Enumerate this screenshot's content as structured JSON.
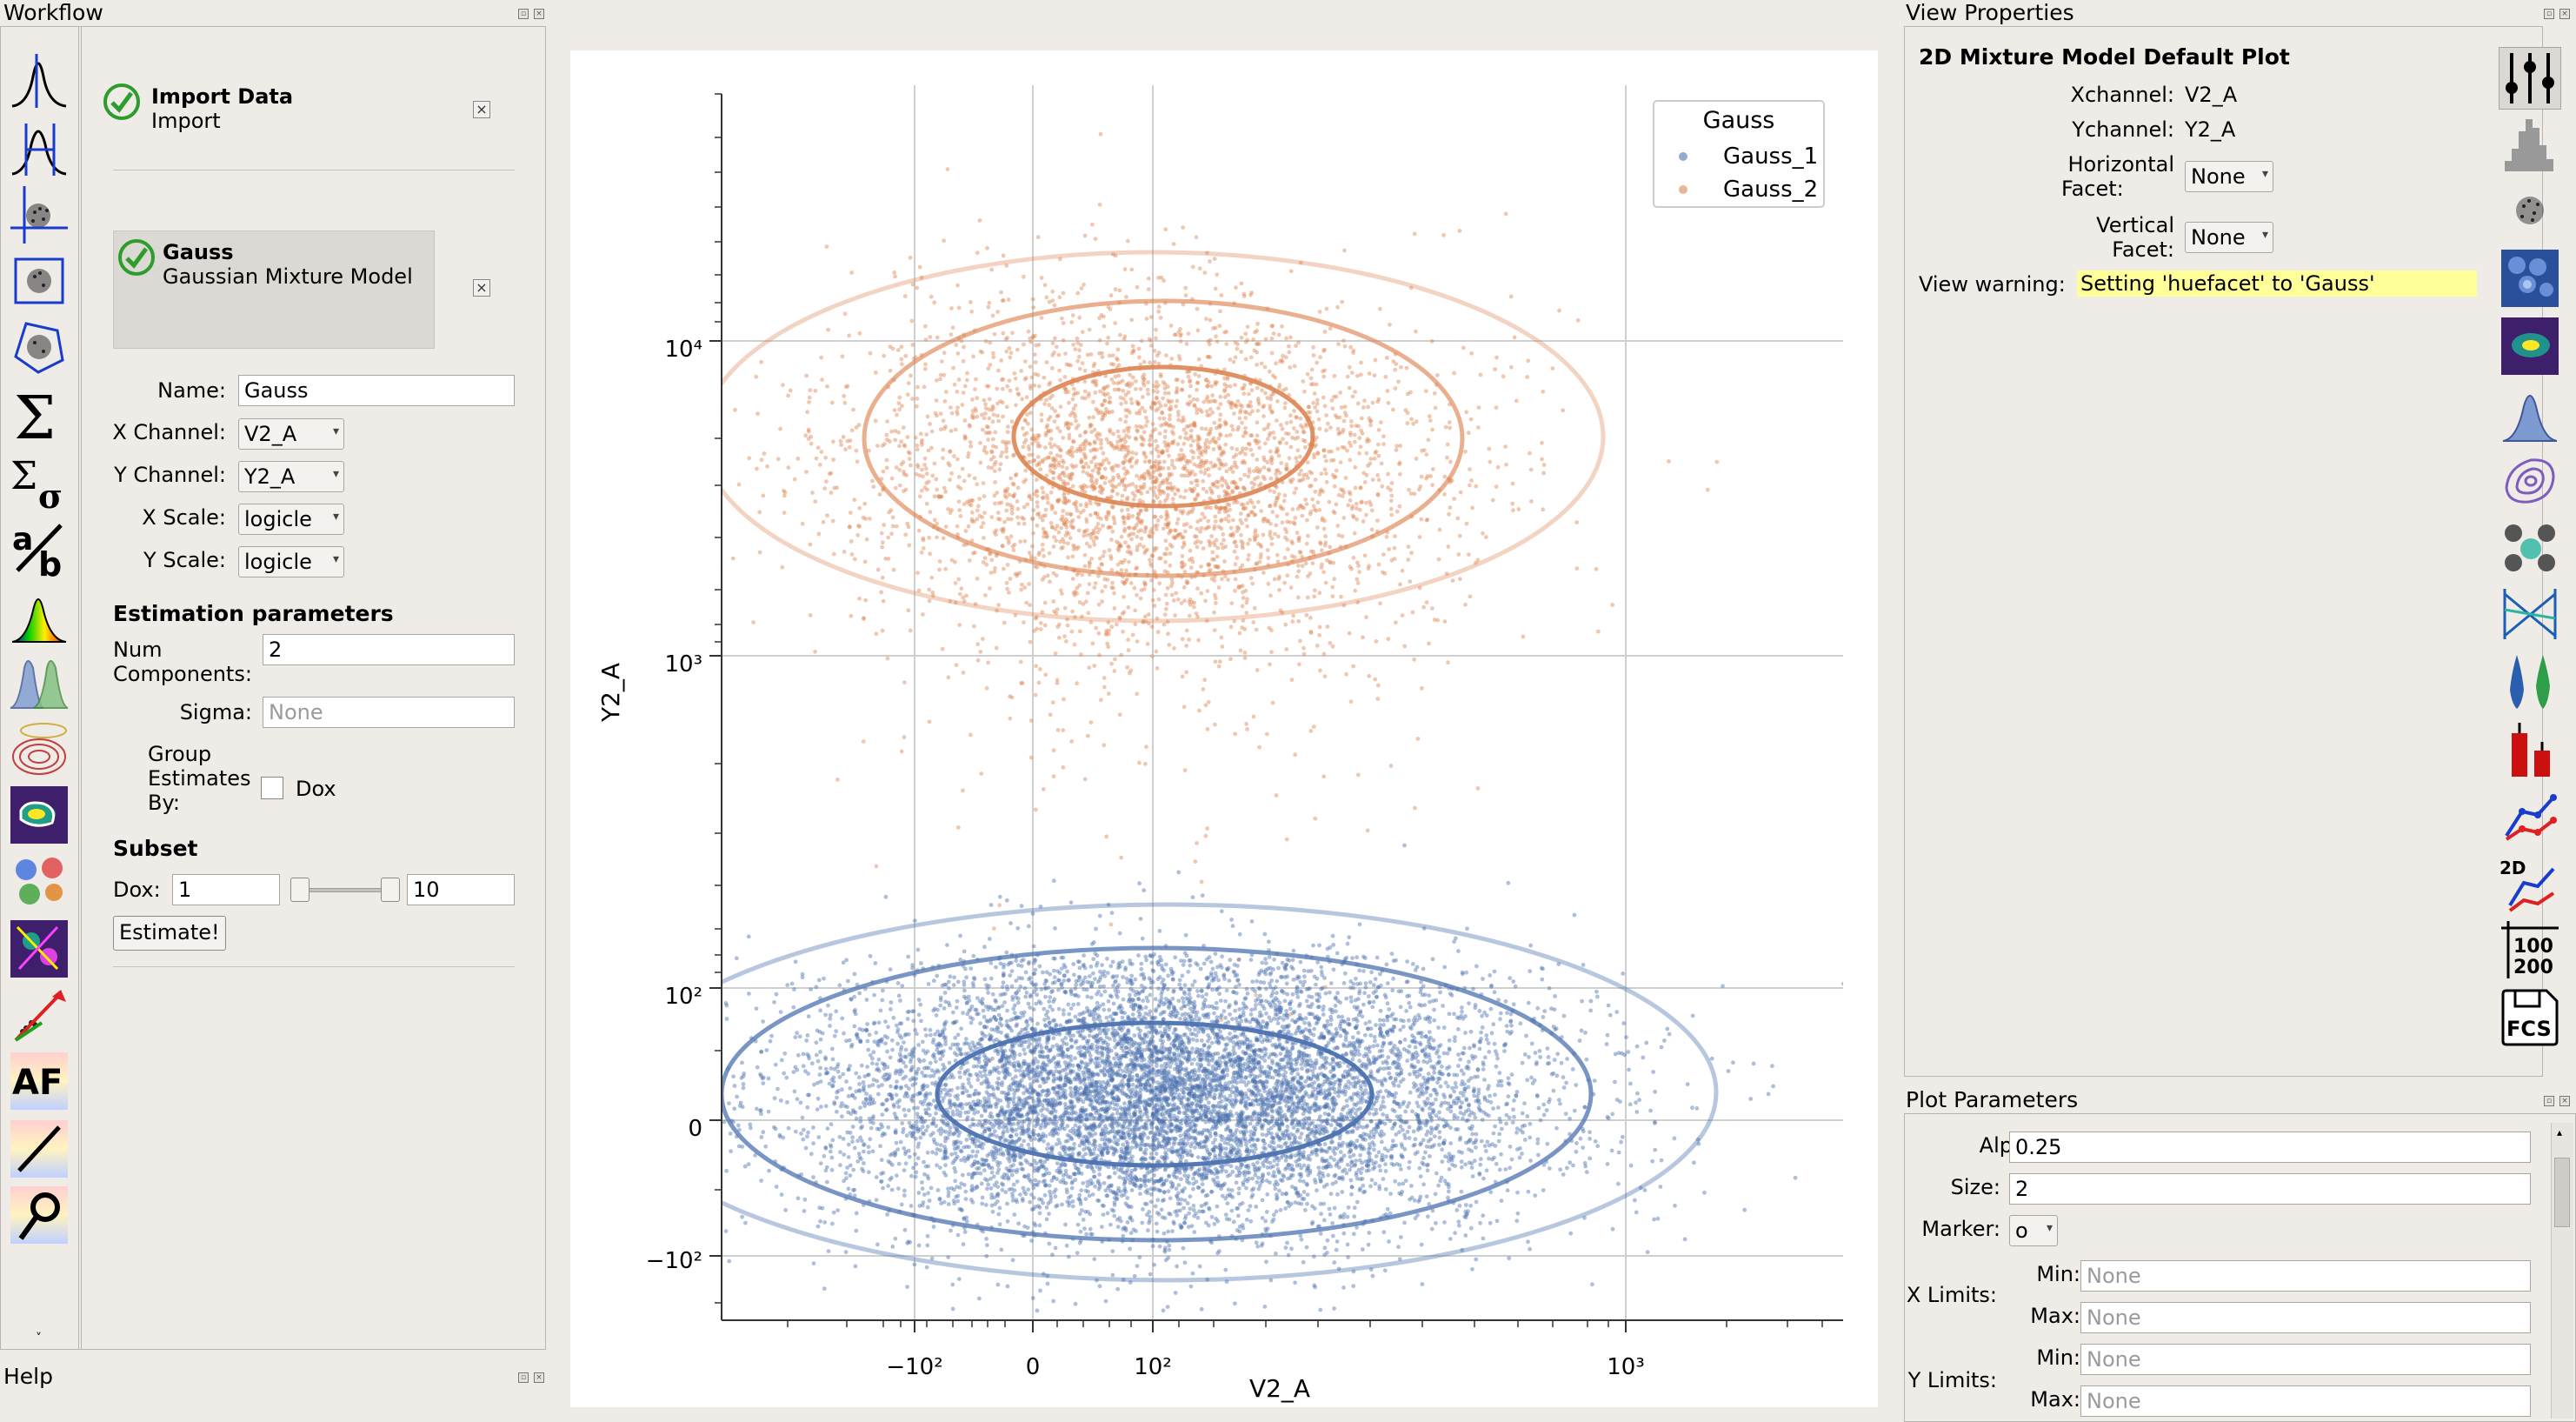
{
  "workflow": {
    "title": "Workflow",
    "operations": [
      {
        "name": "Import Data",
        "subtitle": "Import"
      },
      {
        "name": "Gauss",
        "subtitle": "Gaussian Mixture Model"
      }
    ],
    "form": {
      "name_label": "Name:",
      "name_value": "Gauss",
      "xchannel_label": "X Channel:",
      "xchannel_value": "V2_A",
      "ychannel_label": "Y Channel:",
      "ychannel_value": "Y2_A",
      "xscale_label": "X Scale:",
      "xscale_value": "logicle",
      "yscale_label": "Y Scale:",
      "yscale_value": "logicle",
      "estimation_heading": "Estimation parameters",
      "numcomp_label_1": "Num",
      "numcomp_label_2": "Components:",
      "numcomp_value": "2",
      "sigma_label": "Sigma:",
      "sigma_placeholder": "None",
      "group_label_1": "Group",
      "group_label_2": "Estimates",
      "group_label_3": "By:",
      "group_option": "Dox",
      "subset_heading": "Subset",
      "dox_label": "Dox:",
      "dox_min": "1",
      "dox_max": "10",
      "dox_slider_low": 0,
      "dox_slider_high": 1,
      "estimate_button": "Estimate!"
    }
  },
  "help": {
    "title": "Help"
  },
  "view_properties": {
    "title": "View Properties",
    "plot_name": "2D Mixture Model Default Plot",
    "xchannel_label": "Xchannel:",
    "xchannel_value": "V2_A",
    "ychannel_label": "Ychannel:",
    "ychannel_value": "Y2_A",
    "hfacet_label_1": "Horizontal",
    "hfacet_label_2": "Facet:",
    "hfacet_value": "None",
    "vfacet_label_1": "Vertical",
    "vfacet_label_2": "Facet:",
    "vfacet_value": "None",
    "warning_label": "View warning:",
    "warning_text": "Setting 'huefacet' to 'Gauss'"
  },
  "plot_parameters": {
    "title": "Plot Parameters",
    "alpha_label": "Alpha:",
    "alpha_value": "0.25",
    "size_label": "Size:",
    "size_value": "2",
    "marker_label": "Marker:",
    "marker_value": "o",
    "xlimits_label": "X Limits:",
    "ylimits_label": "Y Limits:",
    "min_label": "Min:",
    "max_label": "Max:",
    "limit_placeholder": "None"
  },
  "chart_data": {
    "type": "scatter",
    "xlabel": "V2_A",
    "ylabel": "Y2_A",
    "x_ticks": [
      "−10²",
      "0",
      "10²",
      "10³"
    ],
    "y_ticks": [
      "10⁴",
      "10³",
      "10²",
      "0",
      "−10²"
    ],
    "scale": "logicle",
    "legend": {
      "title": "Gauss",
      "placement": "top-right"
    },
    "series": [
      {
        "name": "Gauss_1",
        "color": "#4c72b0",
        "center": {
          "x": 110,
          "y": 25
        },
        "point_count": "~10000"
      },
      {
        "name": "Gauss_2",
        "color": "#dd8452",
        "center": {
          "x": 110,
          "y": 5500
        },
        "point_count": "~4000"
      }
    ],
    "grid": true
  },
  "colors": {
    "gauss_1": "#4c72b0",
    "gauss_2": "#dd8452",
    "warning_bg": "#ffff99"
  }
}
